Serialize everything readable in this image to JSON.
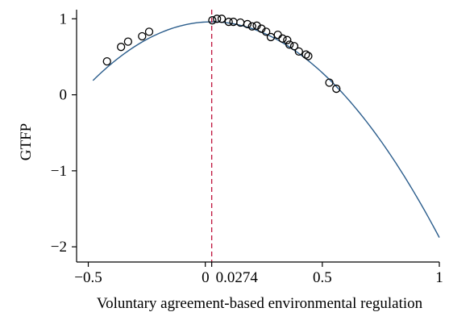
{
  "chart_data": {
    "type": "scatter",
    "xlabel": "Voluntary agreement-based environmental regulation",
    "ylabel": "GTFP",
    "xlim": [
      -0.55,
      1.0
    ],
    "ylim": [
      -2.2,
      1.12
    ],
    "x_ticks": [
      -0.5,
      0,
      0.0274,
      0.5,
      1
    ],
    "x_tick_labels": [
      "−0.5",
      "0",
      "0.0274",
      "0.5",
      "1"
    ],
    "y_ticks": [
      1,
      0,
      -1,
      -2
    ],
    "y_tick_labels": [
      "1",
      "0",
      "−1",
      "−2"
    ],
    "vertical_line": {
      "x": 0.0274,
      "style": "dashed",
      "color": "#c0143c"
    },
    "fitted_curve": {
      "type": "quadratic",
      "vertex_x": 0.0274,
      "vertex_y": 0.96,
      "curvature": -3.0,
      "x_range": [
        -0.48,
        1.0
      ],
      "color": "#2b5d8c"
    },
    "points": [
      {
        "x": -0.42,
        "y": 0.44
      },
      {
        "x": -0.36,
        "y": 0.63
      },
      {
        "x": -0.33,
        "y": 0.7
      },
      {
        "x": -0.27,
        "y": 0.77
      },
      {
        "x": -0.24,
        "y": 0.83
      },
      {
        "x": 0.03,
        "y": 0.98
      },
      {
        "x": 0.05,
        "y": 1.0
      },
      {
        "x": 0.07,
        "y": 1.0
      },
      {
        "x": 0.1,
        "y": 0.96
      },
      {
        "x": 0.12,
        "y": 0.96
      },
      {
        "x": 0.15,
        "y": 0.95
      },
      {
        "x": 0.18,
        "y": 0.93
      },
      {
        "x": 0.2,
        "y": 0.9
      },
      {
        "x": 0.22,
        "y": 0.91
      },
      {
        "x": 0.24,
        "y": 0.87
      },
      {
        "x": 0.26,
        "y": 0.83
      },
      {
        "x": 0.28,
        "y": 0.76
      },
      {
        "x": 0.31,
        "y": 0.79
      },
      {
        "x": 0.33,
        "y": 0.74
      },
      {
        "x": 0.35,
        "y": 0.72
      },
      {
        "x": 0.36,
        "y": 0.66
      },
      {
        "x": 0.38,
        "y": 0.64
      },
      {
        "x": 0.4,
        "y": 0.57
      },
      {
        "x": 0.43,
        "y": 0.53
      },
      {
        "x": 0.44,
        "y": 0.51
      },
      {
        "x": 0.53,
        "y": 0.16
      },
      {
        "x": 0.56,
        "y": 0.08
      }
    ]
  }
}
